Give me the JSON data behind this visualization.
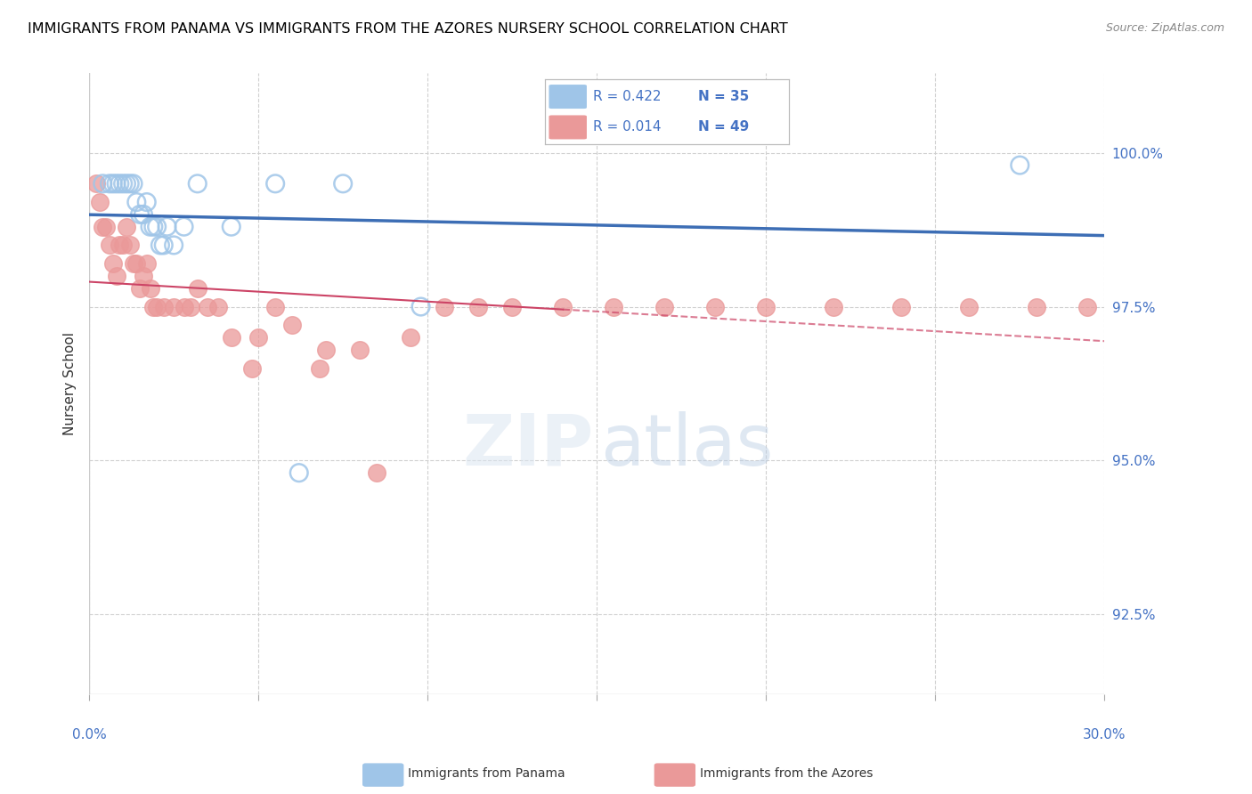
{
  "title": "IMMIGRANTS FROM PANAMA VS IMMIGRANTS FROM THE AZORES NURSERY SCHOOL CORRELATION CHART",
  "source": "Source: ZipAtlas.com",
  "ylabel": "Nursery School",
  "ytick_values": [
    92.5,
    95.0,
    97.5,
    100.0
  ],
  "xmin": 0.0,
  "xmax": 30.0,
  "ymin": 91.2,
  "ymax": 101.3,
  "legend_label_blue": "Immigrants from Panama",
  "legend_label_pink": "Immigrants from the Azores",
  "blue_color": "#9fc5e8",
  "pink_color": "#ea9999",
  "blue_line_color": "#3d6eb5",
  "pink_line_color": "#cc4466",
  "blue_scatter_x": [
    0.4,
    0.6,
    0.7,
    0.8,
    0.9,
    1.0,
    1.1,
    1.2,
    1.3,
    1.4,
    1.5,
    1.6,
    1.7,
    1.8,
    1.9,
    2.0,
    2.1,
    2.2,
    2.3,
    2.5,
    2.8,
    3.2,
    4.2,
    5.5,
    6.2,
    7.5,
    9.8,
    27.5
  ],
  "blue_scatter_y": [
    99.5,
    99.5,
    99.5,
    99.5,
    99.5,
    99.5,
    99.5,
    99.5,
    99.5,
    99.2,
    99.0,
    99.0,
    99.2,
    98.8,
    98.8,
    98.8,
    98.5,
    98.5,
    98.8,
    98.5,
    98.8,
    99.5,
    98.8,
    99.5,
    94.8,
    99.5,
    97.5,
    99.8
  ],
  "pink_scatter_x": [
    0.2,
    0.3,
    0.4,
    0.5,
    0.6,
    0.7,
    0.8,
    0.9,
    1.0,
    1.1,
    1.2,
    1.3,
    1.4,
    1.5,
    1.6,
    1.7,
    1.8,
    1.9,
    2.0,
    2.2,
    2.5,
    2.8,
    3.0,
    3.2,
    3.5,
    3.8,
    4.2,
    5.0,
    5.5,
    6.0,
    7.0,
    8.0,
    9.5,
    10.5,
    11.5,
    12.5,
    14.0,
    15.5,
    17.0,
    18.5,
    20.0,
    22.0,
    24.0,
    26.0,
    28.0,
    29.5,
    4.8,
    6.8,
    8.5
  ],
  "pink_scatter_y": [
    99.5,
    99.2,
    98.8,
    98.8,
    98.5,
    98.2,
    98.0,
    98.5,
    98.5,
    98.8,
    98.5,
    98.2,
    98.2,
    97.8,
    98.0,
    98.2,
    97.8,
    97.5,
    97.5,
    97.5,
    97.5,
    97.5,
    97.5,
    97.8,
    97.5,
    97.5,
    97.0,
    97.0,
    97.5,
    97.2,
    96.8,
    96.8,
    97.0,
    97.5,
    97.5,
    97.5,
    97.5,
    97.5,
    97.5,
    97.5,
    97.5,
    97.5,
    97.5,
    97.5,
    97.5,
    97.5,
    96.5,
    96.5,
    94.8
  ]
}
